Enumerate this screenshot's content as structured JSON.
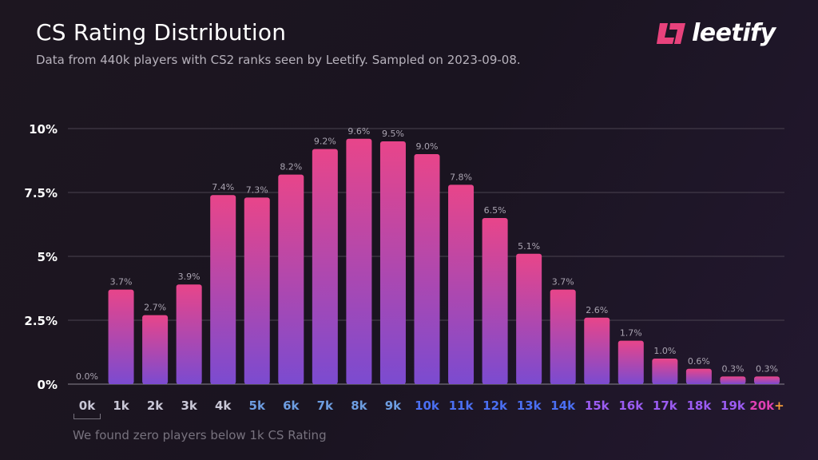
{
  "header": {
    "title": "CS Rating Distribution",
    "subtitle": "Data from 440k players with CS2 ranks seen by Leetify. Sampled on 2023-09-08."
  },
  "logo": {
    "text": "leetify",
    "color": "#e8427c"
  },
  "note": "We found zero players below 1k CS Rating",
  "chart_data": {
    "type": "bar",
    "categories": [
      "0k",
      "1k",
      "2k",
      "3k",
      "4k",
      "5k",
      "6k",
      "7k",
      "8k",
      "9k",
      "10k",
      "11k",
      "12k",
      "13k",
      "14k",
      "15k",
      "16k",
      "17k",
      "18k",
      "19k",
      "20k"
    ],
    "last_category_suffix": "+",
    "values": [
      0.0,
      3.7,
      2.7,
      3.9,
      7.4,
      7.3,
      8.2,
      9.2,
      9.6,
      9.5,
      9.0,
      7.8,
      6.5,
      5.1,
      3.7,
      2.6,
      1.7,
      1.0,
      0.6,
      0.3,
      0.3
    ],
    "data_labels": [
      "0.0%",
      "3.7%",
      "2.7%",
      "3.9%",
      "7.4%",
      "7.3%",
      "8.2%",
      "9.2%",
      "9.6%",
      "9.5%",
      "9.0%",
      "7.8%",
      "6.5%",
      "5.1%",
      "3.7%",
      "2.6%",
      "1.7%",
      "1.0%",
      "0.6%",
      "0.3%",
      "0.3%"
    ],
    "yticks": [
      0,
      2.5,
      5,
      7.5,
      10
    ],
    "ytick_labels": [
      "0%",
      "2.5%",
      "5%",
      "7.5%",
      "10%"
    ],
    "ylim": [
      0,
      10
    ],
    "grid": true,
    "bar_gradient": [
      "#e8458a",
      "#7b4bd0"
    ],
    "category_colors": [
      "#c9c7d6",
      "#c9c7d6",
      "#c9c7d6",
      "#c9c7d6",
      "#c9c7d6",
      "#6d9de0",
      "#6d9de0",
      "#6d9de0",
      "#6d9de0",
      "#6d9de0",
      "#4b6ff2",
      "#4b6ff2",
      "#4b6ff2",
      "#4b6ff2",
      "#4b6ff2",
      "#9b5cf2",
      "#9b5cf2",
      "#9b5cf2",
      "#9b5cf2",
      "#9b5cf2",
      "#e040b4"
    ],
    "suffix_color": "#f39a3a"
  }
}
